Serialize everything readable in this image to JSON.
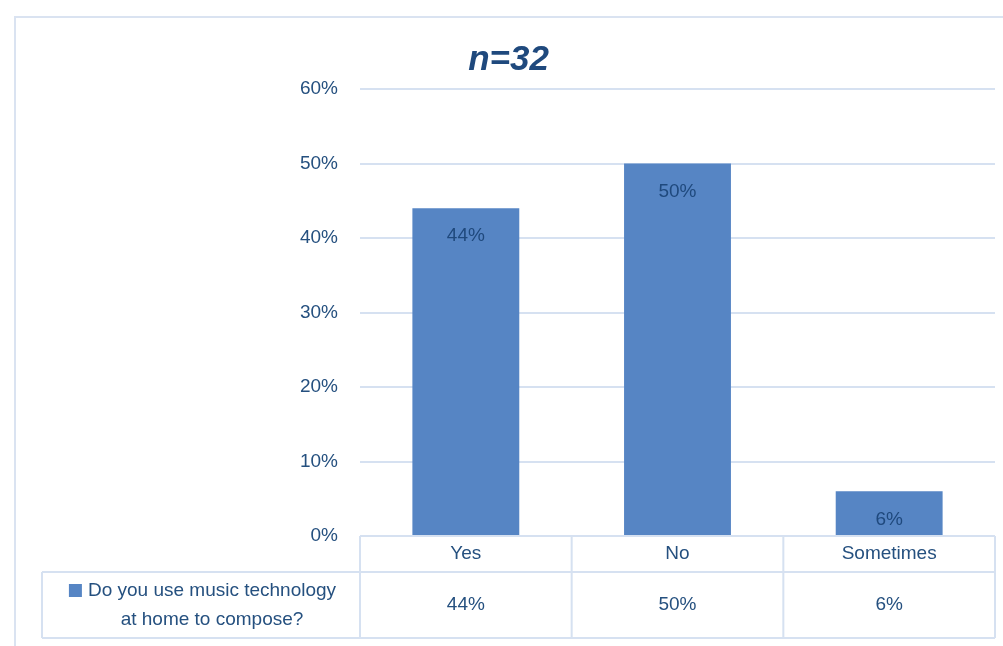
{
  "chart_data": {
    "type": "bar",
    "title": "n=32",
    "categories": [
      "Yes",
      "No",
      "Sometimes"
    ],
    "series": [
      {
        "name": "Do you use music technology at home to compose?",
        "color": "#5685c4",
        "values": [
          44,
          50,
          6
        ],
        "value_labels": [
          "44%",
          "50%",
          "6%"
        ]
      }
    ],
    "ylim": [
      0,
      60
    ],
    "yticks": [
      {
        "value": 0,
        "label": "0%"
      },
      {
        "value": 10,
        "label": "10%"
      },
      {
        "value": 20,
        "label": "20%"
      },
      {
        "value": 30,
        "label": "30%"
      },
      {
        "value": 40,
        "label": "40%"
      },
      {
        "value": 50,
        "label": "50%"
      },
      {
        "value": 60,
        "label": "60%"
      }
    ],
    "grid": "y",
    "legend": "bottom left"
  }
}
